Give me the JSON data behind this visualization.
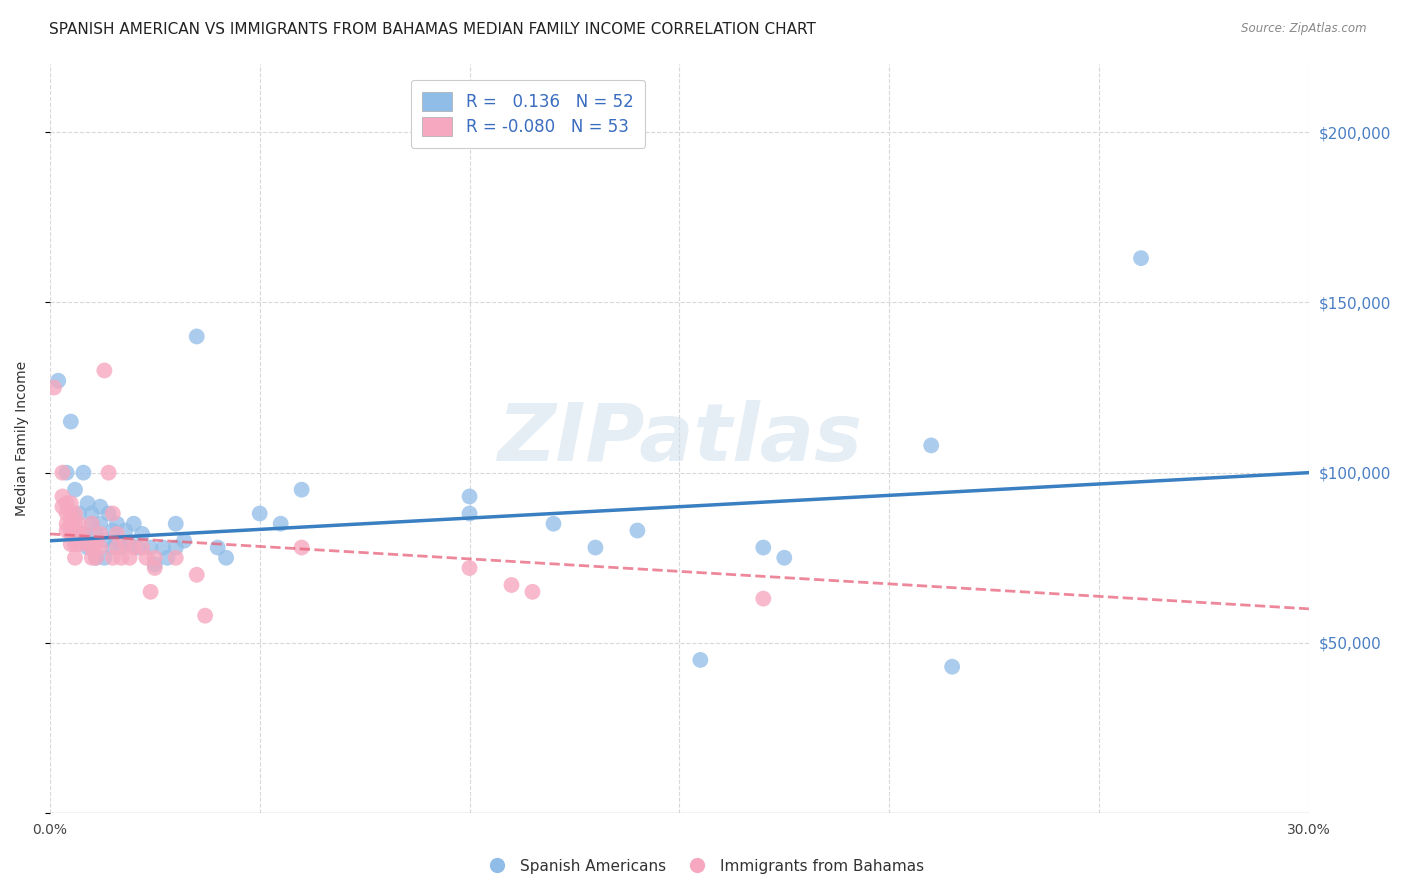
{
  "title": "SPANISH AMERICAN VS IMMIGRANTS FROM BAHAMAS MEDIAN FAMILY INCOME CORRELATION CHART",
  "source": "Source: ZipAtlas.com",
  "ylabel": "Median Family Income",
  "xlim": [
    0,
    0.3
  ],
  "ylim": [
    0,
    220000
  ],
  "yticks": [
    0,
    50000,
    100000,
    150000,
    200000
  ],
  "ytick_labels": [
    "",
    "$50,000",
    "$100,000",
    "$150,000",
    "$200,000"
  ],
  "xticks": [
    0.0,
    0.05,
    0.1,
    0.15,
    0.2,
    0.25,
    0.3
  ],
  "xtick_labels": [
    "0.0%",
    "",
    "",
    "",
    "",
    "",
    "30.0%"
  ],
  "watermark": "ZIPatlas",
  "blue_color": "#90bce8",
  "pink_color": "#f5a8bf",
  "blue_line_color": "#3a7fc1",
  "pink_line_color": "#e8607a",
  "grid_color": "#d8d8d8",
  "background_color": "#ffffff",
  "title_fontsize": 11,
  "axis_label_fontsize": 10,
  "tick_fontsize": 10,
  "right_ytick_color": "#4a7fc4",
  "blue_trend": [
    0.0,
    80000,
    0.3,
    100000
  ],
  "pink_trend": [
    0.0,
    82000,
    0.3,
    60000
  ],
  "blue_scatter": [
    [
      0.002,
      127000
    ],
    [
      0.004,
      100000
    ],
    [
      0.005,
      115000
    ],
    [
      0.006,
      95000
    ],
    [
      0.007,
      88000
    ],
    [
      0.008,
      100000
    ],
    [
      0.008,
      82000
    ],
    [
      0.009,
      91000
    ],
    [
      0.009,
      78000
    ],
    [
      0.01,
      88000
    ],
    [
      0.01,
      85000
    ],
    [
      0.011,
      82000
    ],
    [
      0.011,
      75000
    ],
    [
      0.012,
      90000
    ],
    [
      0.012,
      85000
    ],
    [
      0.013,
      80000
    ],
    [
      0.013,
      75000
    ],
    [
      0.014,
      88000
    ],
    [
      0.015,
      83000
    ],
    [
      0.015,
      78000
    ],
    [
      0.016,
      85000
    ],
    [
      0.016,
      80000
    ],
    [
      0.017,
      78000
    ],
    [
      0.018,
      83000
    ],
    [
      0.019,
      79000
    ],
    [
      0.02,
      85000
    ],
    [
      0.021,
      78000
    ],
    [
      0.022,
      82000
    ],
    [
      0.024,
      78000
    ],
    [
      0.025,
      73000
    ],
    [
      0.027,
      78000
    ],
    [
      0.028,
      75000
    ],
    [
      0.03,
      85000
    ],
    [
      0.03,
      78000
    ],
    [
      0.032,
      80000
    ],
    [
      0.035,
      140000
    ],
    [
      0.04,
      78000
    ],
    [
      0.042,
      75000
    ],
    [
      0.05,
      88000
    ],
    [
      0.055,
      85000
    ],
    [
      0.06,
      95000
    ],
    [
      0.1,
      93000
    ],
    [
      0.1,
      88000
    ],
    [
      0.12,
      85000
    ],
    [
      0.13,
      78000
    ],
    [
      0.14,
      83000
    ],
    [
      0.155,
      45000
    ],
    [
      0.17,
      78000
    ],
    [
      0.175,
      75000
    ],
    [
      0.21,
      108000
    ],
    [
      0.215,
      43000
    ],
    [
      0.26,
      163000
    ]
  ],
  "pink_scatter": [
    [
      0.001,
      125000
    ],
    [
      0.003,
      100000
    ],
    [
      0.003,
      93000
    ],
    [
      0.003,
      90000
    ],
    [
      0.004,
      91000
    ],
    [
      0.004,
      88000
    ],
    [
      0.004,
      85000
    ],
    [
      0.004,
      83000
    ],
    [
      0.005,
      91000
    ],
    [
      0.005,
      88000
    ],
    [
      0.005,
      85000
    ],
    [
      0.005,
      82000
    ],
    [
      0.005,
      79000
    ],
    [
      0.006,
      88000
    ],
    [
      0.006,
      85000
    ],
    [
      0.006,
      82000
    ],
    [
      0.006,
      79000
    ],
    [
      0.006,
      75000
    ],
    [
      0.007,
      85000
    ],
    [
      0.007,
      82000
    ],
    [
      0.007,
      79000
    ],
    [
      0.008,
      82000
    ],
    [
      0.009,
      79000
    ],
    [
      0.01,
      85000
    ],
    [
      0.01,
      78000
    ],
    [
      0.01,
      75000
    ],
    [
      0.011,
      79000
    ],
    [
      0.011,
      75000
    ],
    [
      0.012,
      82000
    ],
    [
      0.012,
      78000
    ],
    [
      0.013,
      130000
    ],
    [
      0.014,
      100000
    ],
    [
      0.015,
      88000
    ],
    [
      0.015,
      75000
    ],
    [
      0.016,
      82000
    ],
    [
      0.016,
      78000
    ],
    [
      0.017,
      75000
    ],
    [
      0.018,
      79000
    ],
    [
      0.019,
      75000
    ],
    [
      0.02,
      78000
    ],
    [
      0.022,
      78000
    ],
    [
      0.023,
      75000
    ],
    [
      0.024,
      65000
    ],
    [
      0.025,
      75000
    ],
    [
      0.025,
      72000
    ],
    [
      0.03,
      75000
    ],
    [
      0.035,
      70000
    ],
    [
      0.037,
      58000
    ],
    [
      0.06,
      78000
    ],
    [
      0.1,
      72000
    ],
    [
      0.11,
      67000
    ],
    [
      0.115,
      65000
    ],
    [
      0.17,
      63000
    ]
  ]
}
